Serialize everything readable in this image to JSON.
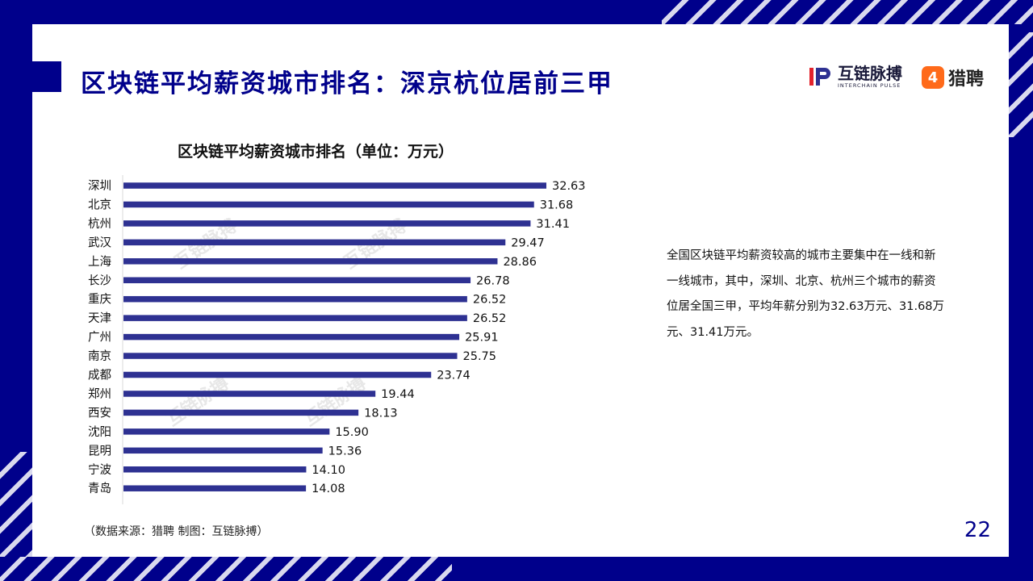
{
  "title": "区块链平均薪资城市排名：深京杭位居前三甲",
  "logos": {
    "interchain_cn": "互链脉搏",
    "interchain_en": "INTERCHAIN PULSE",
    "liepin_mark": "4",
    "liepin": "猎聘"
  },
  "description": "全国区块链平均薪资较高的城市主要集中在一线和新一线城市，其中，深圳、北京、杭州三个城市的薪资位居全国三甲，平均年薪分别为32.63万元、31.68万元、31.41万元。",
  "source": "（数据来源：猎聘   制图：互链脉搏）",
  "page_number": "22",
  "watermark": "互链脉搏",
  "colors": {
    "bar": "#2e3192",
    "accent": "#00008b"
  },
  "chart_data": {
    "type": "bar",
    "orientation": "horizontal",
    "title": "区块链平均薪资城市排名（单位：万元）",
    "categories": [
      "深圳",
      "北京",
      "杭州",
      "武汉",
      "上海",
      "长沙",
      "重庆",
      "天津",
      "广州",
      "南京",
      "成都",
      "郑州",
      "西安",
      "沈阳",
      "昆明",
      "宁波",
      "青岛"
    ],
    "values": [
      32.63,
      31.68,
      31.41,
      29.47,
      28.86,
      26.78,
      26.52,
      26.52,
      25.91,
      25.75,
      23.74,
      19.44,
      18.13,
      15.9,
      15.36,
      14.1,
      14.08
    ],
    "value_labels": [
      "32.63",
      "31.68",
      "31.41",
      "29.47",
      "28.86",
      "26.78",
      "26.52",
      "26.52",
      "25.91",
      "25.75",
      "23.74",
      "19.44",
      "18.13",
      "15.90",
      "15.36",
      "14.10",
      "14.08"
    ],
    "xlim": [
      0,
      32.63
    ],
    "grid": false,
    "legend": "none"
  }
}
